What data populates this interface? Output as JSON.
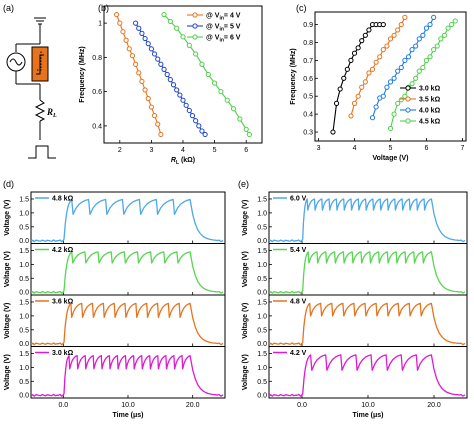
{
  "panel_labels": {
    "a": "(a)",
    "b": "(b)",
    "c": "(c)",
    "d": "(d)",
    "e": "(e)"
  },
  "schematic": {
    "resistor_label": "R",
    "resistor_subscript": "L"
  },
  "chart_data": [
    {
      "id": "b",
      "type": "line",
      "xlabel": "R",
      "xlabel_sub": "L",
      "xlabel_unit": " (kΩ)",
      "ylabel": "Frequency (MHz)",
      "xlim": [
        1.5,
        6.5
      ],
      "ylim": [
        0.3,
        1.1
      ],
      "xticks": [
        2,
        3,
        4,
        5,
        6
      ],
      "yticks": [
        0.4,
        0.6,
        0.8,
        1.0
      ],
      "legend_position": "top-right",
      "series": [
        {
          "name": "@ V",
          "name_sub": "in",
          "name_rest": "= 4 V",
          "color": "#e8731d",
          "x": [
            1.9,
            2.0,
            2.1,
            2.2,
            2.3,
            2.4,
            2.5,
            2.6,
            2.7,
            2.8,
            2.9,
            3.0,
            3.1,
            3.2,
            3.3
          ],
          "y": [
            1.05,
            1.0,
            0.95,
            0.9,
            0.85,
            0.81,
            0.76,
            0.71,
            0.66,
            0.61,
            0.56,
            0.51,
            0.46,
            0.41,
            0.35
          ]
        },
        {
          "name": "@ V",
          "name_sub": "in",
          "name_rest": "= 5 V",
          "color": "#1f46c8",
          "x": [
            2.5,
            2.6,
            2.7,
            2.8,
            2.9,
            3.0,
            3.1,
            3.2,
            3.3,
            3.4,
            3.5,
            3.6,
            3.7,
            3.8,
            3.9,
            4.0,
            4.1,
            4.2,
            4.3,
            4.4,
            4.5,
            4.6,
            4.7
          ],
          "y": [
            1.0,
            0.97,
            0.94,
            0.91,
            0.88,
            0.85,
            0.82,
            0.79,
            0.76,
            0.73,
            0.7,
            0.67,
            0.64,
            0.61,
            0.58,
            0.55,
            0.52,
            0.49,
            0.46,
            0.43,
            0.4,
            0.37,
            0.35
          ]
        },
        {
          "name": "@ V",
          "name_sub": "in",
          "name_rest": "= 6 V",
          "color": "#4fd14a",
          "x": [
            3.4,
            3.6,
            3.8,
            4.0,
            4.2,
            4.4,
            4.6,
            4.8,
            5.0,
            5.2,
            5.4,
            5.6,
            5.8,
            6.0,
            6.1
          ],
          "y": [
            1.05,
            1.01,
            0.97,
            0.92,
            0.87,
            0.82,
            0.76,
            0.7,
            0.65,
            0.6,
            0.55,
            0.5,
            0.44,
            0.38,
            0.35
          ]
        }
      ]
    },
    {
      "id": "c",
      "type": "line",
      "xlabel": "Voltage (V)",
      "ylabel": "Frequency (MHz)",
      "xlim": [
        2.9,
        7.1
      ],
      "ylim": [
        0.25,
        0.97
      ],
      "xticks": [
        3,
        4,
        5,
        6,
        7
      ],
      "yticks": [
        0.3,
        0.4,
        0.5,
        0.6,
        0.7,
        0.8,
        0.9
      ],
      "legend_position": "bottom-right",
      "series": [
        {
          "name": "3.0 kΩ",
          "color": "#000000",
          "x": [
            3.4,
            3.5,
            3.6,
            3.7,
            3.8,
            3.9,
            4.0,
            4.1,
            4.2,
            4.3,
            4.4,
            4.5,
            4.6,
            4.7,
            4.8
          ],
          "y": [
            0.3,
            0.46,
            0.54,
            0.6,
            0.65,
            0.7,
            0.74,
            0.77,
            0.81,
            0.84,
            0.87,
            0.9,
            0.9,
            0.9,
            0.9
          ]
        },
        {
          "name": "3.5 kΩ",
          "color": "#e8731d",
          "x": [
            3.9,
            4.0,
            4.1,
            4.2,
            4.3,
            4.4,
            4.5,
            4.6,
            4.7,
            4.8,
            4.9,
            5.0,
            5.1,
            5.2,
            5.3,
            5.4
          ],
          "y": [
            0.39,
            0.46,
            0.5,
            0.55,
            0.58,
            0.63,
            0.65,
            0.69,
            0.72,
            0.76,
            0.78,
            0.82,
            0.84,
            0.87,
            0.9,
            0.94
          ]
        },
        {
          "name": "4.0 kΩ",
          "color": "#1f7be0",
          "x": [
            4.5,
            4.6,
            4.7,
            4.8,
            4.9,
            5.0,
            5.1,
            5.2,
            5.3,
            5.4,
            5.5,
            5.6,
            5.7,
            5.8,
            5.9,
            6.0,
            6.1,
            6.2
          ],
          "y": [
            0.38,
            0.44,
            0.49,
            0.5,
            0.55,
            0.58,
            0.6,
            0.64,
            0.66,
            0.7,
            0.72,
            0.76,
            0.78,
            0.82,
            0.84,
            0.88,
            0.9,
            0.94
          ]
        },
        {
          "name": "4.5 kΩ",
          "color": "#4fd14a",
          "x": [
            5.0,
            5.1,
            5.2,
            5.3,
            5.4,
            5.5,
            5.6,
            5.7,
            5.8,
            5.9,
            6.0,
            6.1,
            6.2,
            6.3,
            6.4,
            6.5,
            6.6,
            6.7,
            6.8
          ],
          "y": [
            0.32,
            0.4,
            0.46,
            0.48,
            0.5,
            0.55,
            0.57,
            0.6,
            0.64,
            0.66,
            0.7,
            0.72,
            0.76,
            0.78,
            0.82,
            0.84,
            0.88,
            0.9,
            0.92
          ]
        }
      ]
    },
    {
      "id": "d",
      "type": "line",
      "xlabel": "Time (μs)",
      "ylabel": "Voltage (V)",
      "xlim": [
        -5,
        25
      ],
      "ylim": [
        -0.1,
        1.75
      ],
      "xticks": [
        0.0,
        10.0,
        20.0
      ],
      "xtick_labels": [
        "0.0",
        "10.0",
        "20.0"
      ],
      "yticks": [
        0.0,
        0.5,
        1.0,
        1.5
      ],
      "ytick_labels": [
        "0.0",
        "0.5",
        "1.0",
        "1.5"
      ],
      "traces": [
        {
          "label": "4.8 kΩ",
          "color": "#4da8e8",
          "pulse_count": 7,
          "low": 0.95,
          "high": 1.48
        },
        {
          "label": "4.2 kΩ",
          "color": "#57d64f",
          "pulse_count": 9,
          "low": 1.05,
          "high": 1.45
        },
        {
          "label": "3.6 kΩ",
          "color": "#e8731d",
          "pulse_count": 11,
          "low": 0.95,
          "high": 1.45
        },
        {
          "label": "3.0 kΩ",
          "color": "#e019d6",
          "pulse_count": 15,
          "low": 0.95,
          "high": 1.42
        }
      ]
    },
    {
      "id": "e",
      "type": "line",
      "xlabel": "Time (μs)",
      "ylabel": "Voltage (V)",
      "xlim": [
        -5,
        25
      ],
      "ylim": [
        -0.1,
        1.75
      ],
      "xticks": [
        0.0,
        10.0,
        20.0
      ],
      "xtick_labels": [
        "0.0",
        "10.0",
        "20.0"
      ],
      "yticks": [
        0.0,
        0.5,
        1.0,
        1.5
      ],
      "ytick_labels": [
        "0.0",
        "0.5",
        "1.0",
        "1.5"
      ],
      "traces": [
        {
          "label": "6.0 V",
          "color": "#4da8e8",
          "pulse_count": 17,
          "low": 1.1,
          "high": 1.5
        },
        {
          "label": "5.4 V",
          "color": "#57d64f",
          "pulse_count": 14,
          "low": 1.05,
          "high": 1.45
        },
        {
          "label": "4.8 V",
          "color": "#e8731d",
          "pulse_count": 11,
          "low": 1.0,
          "high": 1.45
        },
        {
          "label": "4.2 V",
          "color": "#e019d6",
          "pulse_count": 8,
          "low": 0.9,
          "high": 1.45
        }
      ]
    }
  ]
}
